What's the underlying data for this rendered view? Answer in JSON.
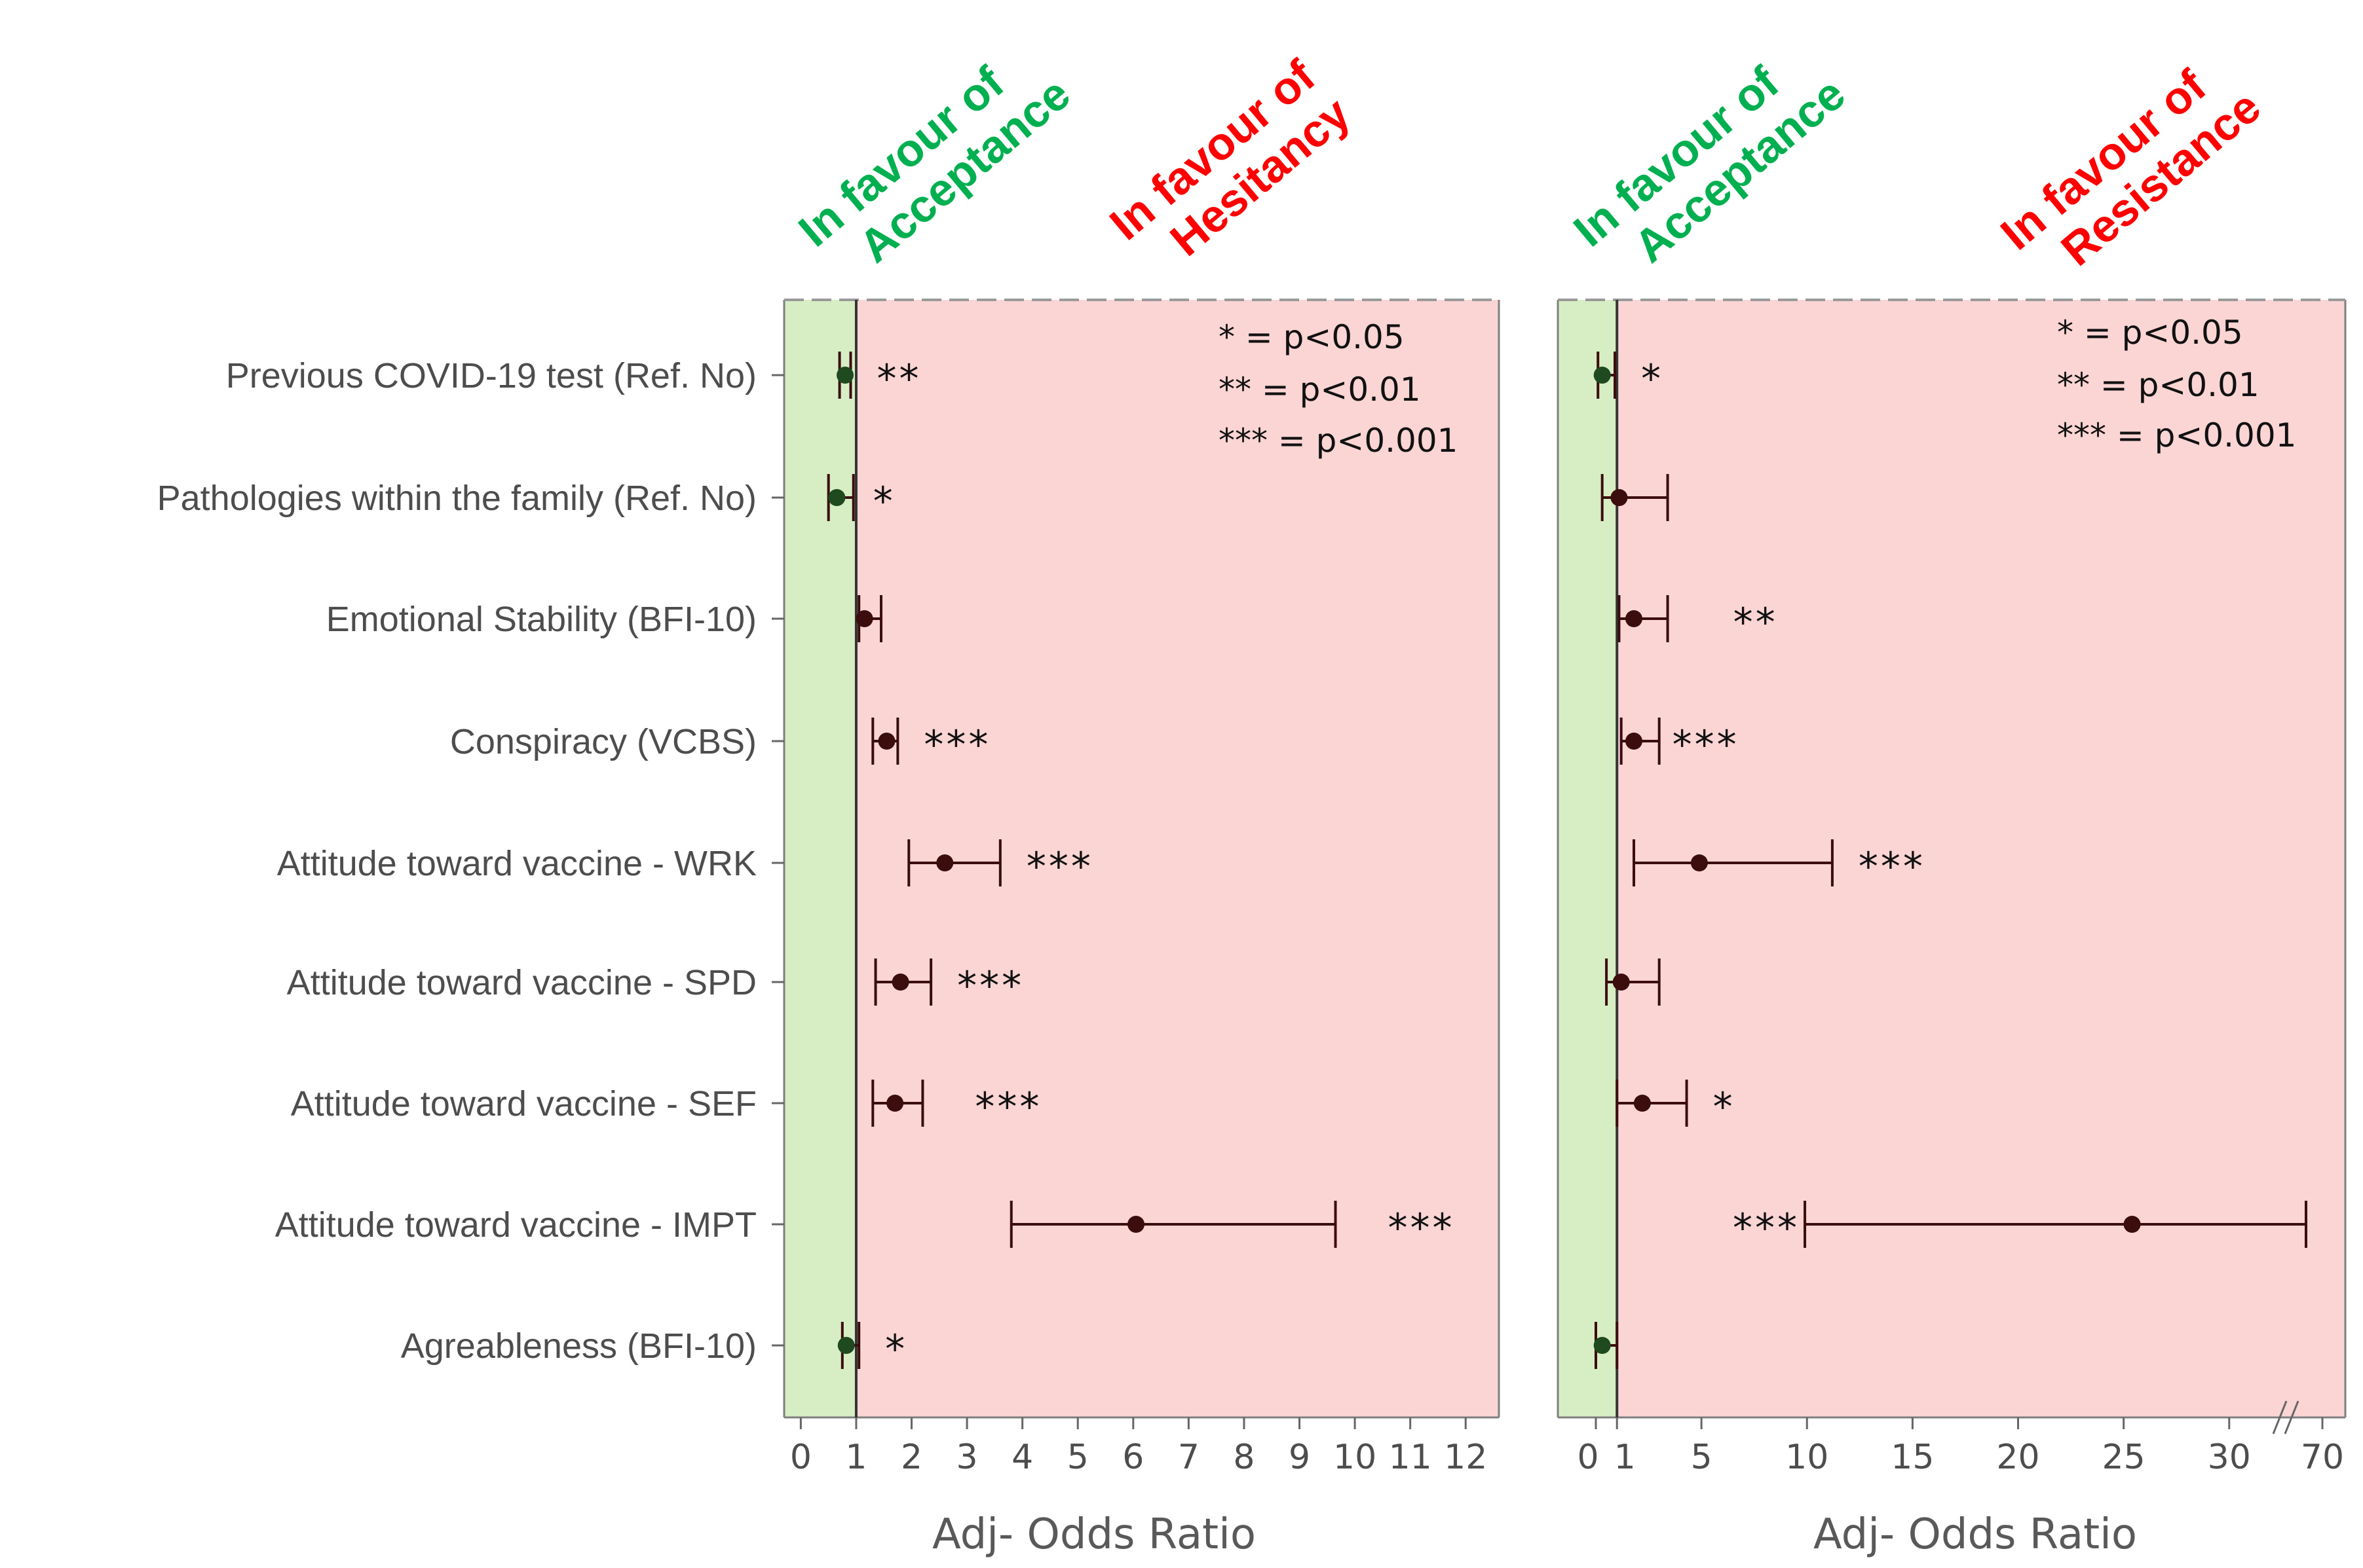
{
  "colors": {
    "favour": "#d7eec4",
    "against": "#fbd4d4",
    "green_text": "#00b050",
    "red_text": "#ff0000",
    "point": "#3b0d0d",
    "axis": "#666666"
  },
  "legend": {
    "one_star": "* =  p<0.05",
    "two_star": "**  =  p<0.01",
    "three_star": "***  =  p<0.001"
  },
  "chart_data": [
    {
      "type": "forest",
      "name": "hesitancy",
      "headers": {
        "left": [
          "In favour of",
          "Acceptance"
        ],
        "right": [
          "In favour of",
          "Hesitancy"
        ]
      },
      "xlabel": "Adj- Odds Ratio",
      "xlim": [
        -0.3,
        12.6
      ],
      "reference": 1,
      "ticks": [
        {
          "v": 0,
          "label": "0"
        },
        {
          "v": 1,
          "label": "1"
        },
        {
          "v": 2,
          "label": "2"
        },
        {
          "v": 3,
          "label": "3"
        },
        {
          "v": 4,
          "label": "4"
        },
        {
          "v": 5,
          "label": "5"
        },
        {
          "v": 6,
          "label": "6"
        },
        {
          "v": 7,
          "label": "7"
        },
        {
          "v": 8,
          "label": "8"
        },
        {
          "v": 9,
          "label": "9"
        },
        {
          "v": 10,
          "label": "10"
        },
        {
          "v": 11,
          "label": "11"
        },
        {
          "v": 12,
          "label": "12"
        }
      ],
      "rows": [
        {
          "label": "Previous COVID-19 test (Ref. No)",
          "est": 0.8,
          "lo": 0.7,
          "hi": 0.9,
          "sig": "**"
        },
        {
          "label": "Pathologies within the family (Ref. No)",
          "est": 0.65,
          "lo": 0.5,
          "hi": 0.95,
          "sig": "*"
        },
        {
          "label": "Emotional Stability (BFI-10)",
          "est": 1.15,
          "lo": 1.05,
          "hi": 1.45,
          "sig": ""
        },
        {
          "label": "Conspiracy (VCBS)",
          "est": 1.55,
          "lo": 1.3,
          "hi": 1.75,
          "sig": "***"
        },
        {
          "label": "Attitude toward vaccine - WRK",
          "est": 2.6,
          "lo": 1.95,
          "hi": 3.6,
          "sig": "***"
        },
        {
          "label": "Attitude toward vaccine - SPD",
          "est": 1.8,
          "lo": 1.35,
          "hi": 2.35,
          "sig": "***"
        },
        {
          "label": "Attitude toward vaccine - SEF",
          "est": 1.7,
          "lo": 1.3,
          "hi": 2.2,
          "sig": "***"
        },
        {
          "label": "Attitude toward vaccine - IMPT",
          "est": 6.05,
          "lo": 3.8,
          "hi": 9.65,
          "sig": "***"
        },
        {
          "label": "Agreableness (BFI-10)",
          "est": 0.82,
          "lo": 0.75,
          "hi": 1.05,
          "sig": "*"
        }
      ]
    },
    {
      "type": "forest",
      "name": "resistance",
      "headers": {
        "left": [
          "In favour of",
          "Acceptance"
        ],
        "right": [
          "In favour of",
          "Resistance"
        ]
      },
      "xlabel": "Adj- Odds Ratio",
      "xlim": [
        -1.8,
        35.5
      ],
      "reference": 1,
      "axis_break_label": "70",
      "ticks": [
        {
          "v": 0,
          "label": "0"
        },
        {
          "v": 1,
          "label": "1"
        },
        {
          "v": 5,
          "label": "5"
        },
        {
          "v": 10,
          "label": "10"
        },
        {
          "v": 15,
          "label": "15"
        },
        {
          "v": 20,
          "label": "20"
        },
        {
          "v": 25,
          "label": "25"
        },
        {
          "v": 30,
          "label": "30"
        }
      ],
      "rows": [
        {
          "label": "Previous COVID-19 test (Ref. No)",
          "est": 0.3,
          "lo": 0.1,
          "hi": 0.9,
          "sig": "*"
        },
        {
          "label": "Pathologies within the family (Ref. No)",
          "est": 1.1,
          "lo": 0.3,
          "hi": 3.4,
          "sig": ""
        },
        {
          "label": "Emotional Stability (BFI-10)",
          "est": 1.8,
          "lo": 1.1,
          "hi": 3.4,
          "sig": "**"
        },
        {
          "label": "Conspiracy (VCBS)",
          "est": 1.8,
          "lo": 1.2,
          "hi": 3.0,
          "sig": "***"
        },
        {
          "label": "Attitude toward vaccine - WRK",
          "est": 4.9,
          "lo": 1.8,
          "hi": 11.2,
          "sig": "***"
        },
        {
          "label": "Attitude toward vaccine - SPD",
          "est": 1.2,
          "lo": 0.5,
          "hi": 3.0,
          "sig": ""
        },
        {
          "label": "Attitude toward vaccine - SEF",
          "est": 2.2,
          "lo": 1.0,
          "hi": 4.3,
          "sig": "*"
        },
        {
          "label": "Attitude toward vaccine - IMPT",
          "est": 25.4,
          "lo": 9.9,
          "hi": 70,
          "sig": "***"
        },
        {
          "label": "Agreableness (BFI-10)",
          "est": 0.3,
          "lo": 0.0,
          "hi": 1.0,
          "sig": ""
        }
      ]
    }
  ]
}
